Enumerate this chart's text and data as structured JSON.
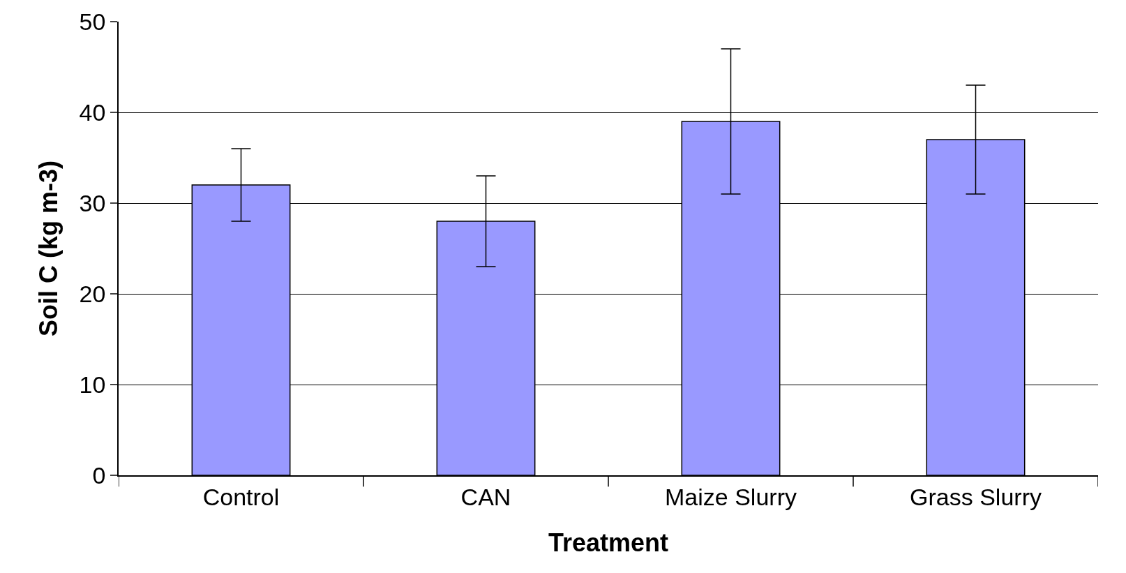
{
  "chart_data": {
    "type": "bar",
    "xlabel": "Treatment",
    "ylabel": "Soil C (kg m-3)",
    "categories": [
      "Control",
      "CAN",
      "Maize Slurry",
      "Grass Slurry"
    ],
    "values": [
      32,
      28,
      39,
      37
    ],
    "errors": [
      4,
      5,
      8,
      6
    ],
    "color": "#9999ff",
    "ylim": [
      0,
      50
    ],
    "yticks": [
      0,
      10,
      20,
      30,
      40,
      50
    ],
    "grid": "y",
    "legend": false
  }
}
